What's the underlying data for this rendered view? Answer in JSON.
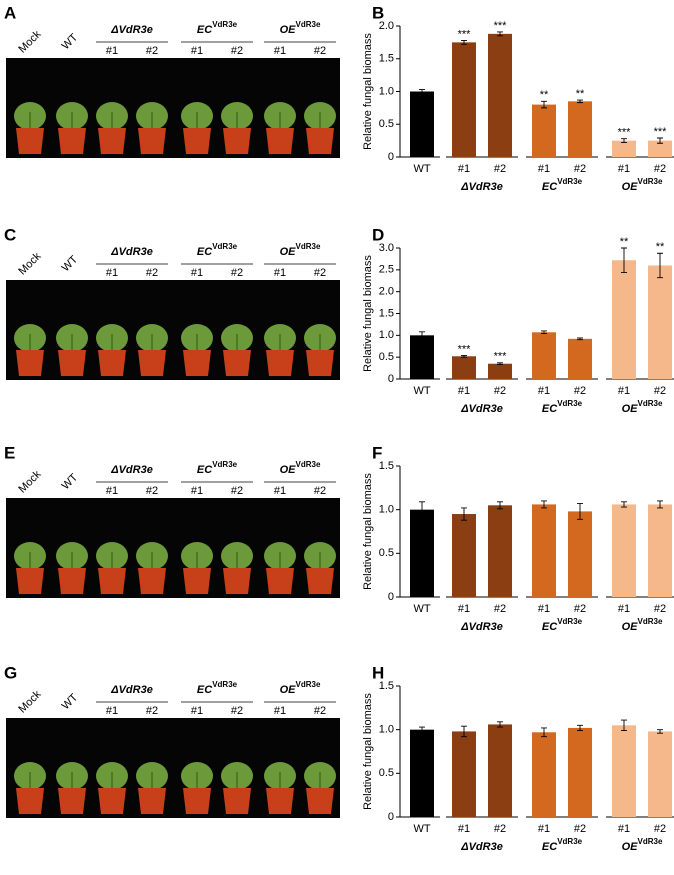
{
  "photo_panels": [
    {
      "panel": "A",
      "labels": [
        "Mock",
        "WT"
      ],
      "groups": [
        {
          "name": "ΔVdR3e",
          "items": [
            "#1",
            "#2"
          ]
        },
        {
          "name": "EC",
          "sup": "VdR3e",
          "items": [
            "#1",
            "#2"
          ]
        },
        {
          "name": "OE",
          "sup": "VdR3e",
          "items": [
            "#1",
            "#2"
          ]
        }
      ]
    },
    {
      "panel": "C",
      "labels": [
        "Mock",
        "WT"
      ],
      "groups": [
        {
          "name": "ΔVdR3e",
          "items": [
            "#1",
            "#2"
          ]
        },
        {
          "name": "EC",
          "sup": "VdR3e",
          "items": [
            "#1",
            "#2"
          ]
        },
        {
          "name": "OE",
          "sup": "VdR3e",
          "items": [
            "#1",
            "#2"
          ]
        }
      ]
    },
    {
      "panel": "E",
      "labels": [
        "Mock",
        "WT"
      ],
      "groups": [
        {
          "name": "ΔVdR3e",
          "items": [
            "#1",
            "#2"
          ]
        },
        {
          "name": "EC",
          "sup": "VdR3e",
          "items": [
            "#1",
            "#2"
          ]
        },
        {
          "name": "OE",
          "sup": "VdR3e",
          "items": [
            "#1",
            "#2"
          ]
        }
      ]
    },
    {
      "panel": "G",
      "labels": [
        "Mock",
        "WT"
      ],
      "groups": [
        {
          "name": "ΔVdR3e",
          "items": [
            "#1",
            "#2"
          ]
        },
        {
          "name": "EC",
          "sup": "VdR3e",
          "items": [
            "#1",
            "#2"
          ]
        },
        {
          "name": "OE",
          "sup": "VdR3e",
          "items": [
            "#1",
            "#2"
          ]
        }
      ]
    }
  ],
  "chart_data": [
    {
      "type": "bar",
      "panel": "B",
      "y_label": "Relative fungal biomass",
      "categories": [
        "WT",
        "#1",
        "#2",
        "#1",
        "#2",
        "#1",
        "#2"
      ],
      "groups": [
        {
          "name": "ΔVdR3e"
        },
        {
          "name": "EC",
          "sup": "VdR3e"
        },
        {
          "name": "OE",
          "sup": "VdR3e"
        }
      ],
      "values": [
        1.0,
        1.75,
        1.88,
        0.8,
        0.85,
        0.25,
        0.25
      ],
      "errors": [
        0.03,
        0.03,
        0.03,
        0.05,
        0.02,
        0.03,
        0.04
      ],
      "significance": [
        null,
        "***",
        "***",
        "**",
        "**",
        "***",
        "***"
      ],
      "colors": [
        "#000000",
        "#8b3e12",
        "#8b3e12",
        "#d2691e",
        "#d2691e",
        "#f5b88a",
        "#f5b88a"
      ],
      "ylim": [
        0,
        2.0
      ],
      "yticks": [
        0,
        0.5,
        {
          "value": 1,
          "label": "1.0"
        },
        1.5,
        {
          "value": 2,
          "label": "2.0"
        }
      ]
    },
    {
      "type": "bar",
      "panel": "D",
      "y_label": "Relative fungal biomass",
      "categories": [
        "WT",
        "#1",
        "#2",
        "#1",
        "#2",
        "#1",
        "#2"
      ],
      "groups": [
        {
          "name": "ΔVdR3e"
        },
        {
          "name": "EC",
          "sup": "VdR3e"
        },
        {
          "name": "OE",
          "sup": "VdR3e"
        }
      ],
      "values": [
        1.0,
        0.52,
        0.35,
        1.07,
        0.92,
        2.72,
        2.6
      ],
      "errors": [
        0.08,
        0.02,
        0.02,
        0.03,
        0.02,
        0.28,
        0.28
      ],
      "significance": [
        null,
        "***",
        "***",
        null,
        null,
        "**",
        "**"
      ],
      "colors": [
        "#000000",
        "#8b3e12",
        "#8b3e12",
        "#d2691e",
        "#d2691e",
        "#f5b88a",
        "#f5b88a"
      ],
      "ylim": [
        0,
        3.0
      ],
      "yticks": [
        0,
        0.5,
        {
          "value": 1,
          "label": "1.0"
        },
        1.5,
        {
          "value": 2,
          "label": "2.0"
        },
        2.5,
        {
          "value": 3,
          "label": "3.0"
        }
      ]
    },
    {
      "type": "bar",
      "panel": "F",
      "y_label": "Relative fungal biomass",
      "categories": [
        "WT",
        "#1",
        "#2",
        "#1",
        "#2",
        "#1",
        "#2"
      ],
      "groups": [
        {
          "name": "ΔVdR3e"
        },
        {
          "name": "EC",
          "sup": "VdR3e"
        },
        {
          "name": "OE",
          "sup": "VdR3e"
        }
      ],
      "values": [
        1.0,
        0.95,
        1.05,
        1.06,
        0.98,
        1.06,
        1.06
      ],
      "errors": [
        0.09,
        0.07,
        0.04,
        0.04,
        0.09,
        0.03,
        0.04
      ],
      "colors": [
        "#000000",
        "#8b3e12",
        "#8b3e12",
        "#d2691e",
        "#d2691e",
        "#f5b88a",
        "#f5b88a"
      ],
      "ylim": [
        0,
        1.5
      ],
      "yticks": [
        0,
        0.5,
        {
          "value": 1,
          "label": "1.0"
        },
        1.5
      ]
    },
    {
      "type": "bar",
      "panel": "H",
      "y_label": "Relative fungal biomass",
      "categories": [
        "WT",
        "#1",
        "#2",
        "#1",
        "#2",
        "#1",
        "#2"
      ],
      "groups": [
        {
          "name": "ΔVdR3e"
        },
        {
          "name": "EC",
          "sup": "VdR3e"
        },
        {
          "name": "OE",
          "sup": "VdR3e"
        }
      ],
      "values": [
        1.0,
        0.98,
        1.06,
        0.97,
        1.02,
        1.05,
        0.98
      ],
      "errors": [
        0.03,
        0.06,
        0.03,
        0.05,
        0.03,
        0.06,
        0.02
      ],
      "colors": [
        "#000000",
        "#8b3e12",
        "#8b3e12",
        "#d2691e",
        "#d2691e",
        "#f5b88a",
        "#f5b88a"
      ],
      "ylim": [
        0,
        1.5
      ],
      "yticks": [
        0,
        0.5,
        {
          "value": 1,
          "label": "1.0"
        },
        1.5
      ]
    }
  ]
}
